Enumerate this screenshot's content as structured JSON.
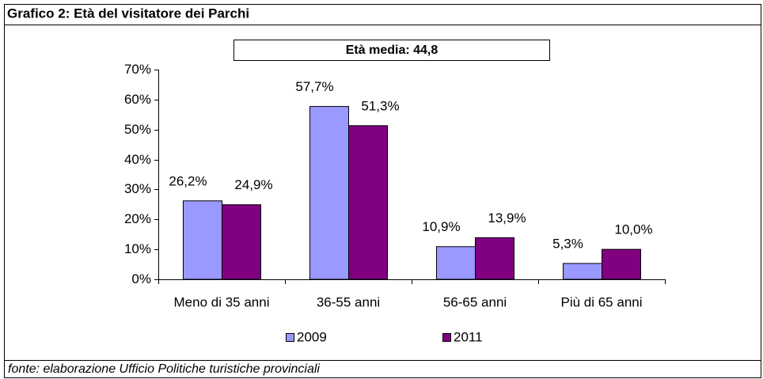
{
  "chart_data": {
    "type": "bar",
    "title": "Grafico 2: Età del visitatore dei Parchi",
    "annotation": "Età media: 44,8",
    "source": "fonte: elaborazione Ufficio Politiche turistiche provinciali",
    "categories": [
      "Meno di 35 anni",
      "36-55 anni",
      "56-65 anni",
      "Più di 65 anni"
    ],
    "series": [
      {
        "name": "2009",
        "color": "#9999ff",
        "values": [
          26.2,
          57.7,
          10.9,
          5.3
        ],
        "value_labels": [
          "26,2%",
          "57,7%",
          "10,9%",
          "5,3%"
        ]
      },
      {
        "name": "2011",
        "color": "#800080",
        "values": [
          24.9,
          51.3,
          13.9,
          10.0
        ],
        "value_labels": [
          "24,9%",
          "51,3%",
          "13,9%",
          "10,0%"
        ]
      }
    ],
    "ylim": [
      0,
      70
    ],
    "yticks": [
      {
        "value": 0,
        "label": "0%"
      },
      {
        "value": 10,
        "label": "10%"
      },
      {
        "value": 20,
        "label": "20%"
      },
      {
        "value": 30,
        "label": "30%"
      },
      {
        "value": 40,
        "label": "40%"
      },
      {
        "value": 50,
        "label": "50%"
      },
      {
        "value": 60,
        "label": "60%"
      },
      {
        "value": 70,
        "label": "70%"
      }
    ],
    "grid": false,
    "legend": "bottom"
  }
}
